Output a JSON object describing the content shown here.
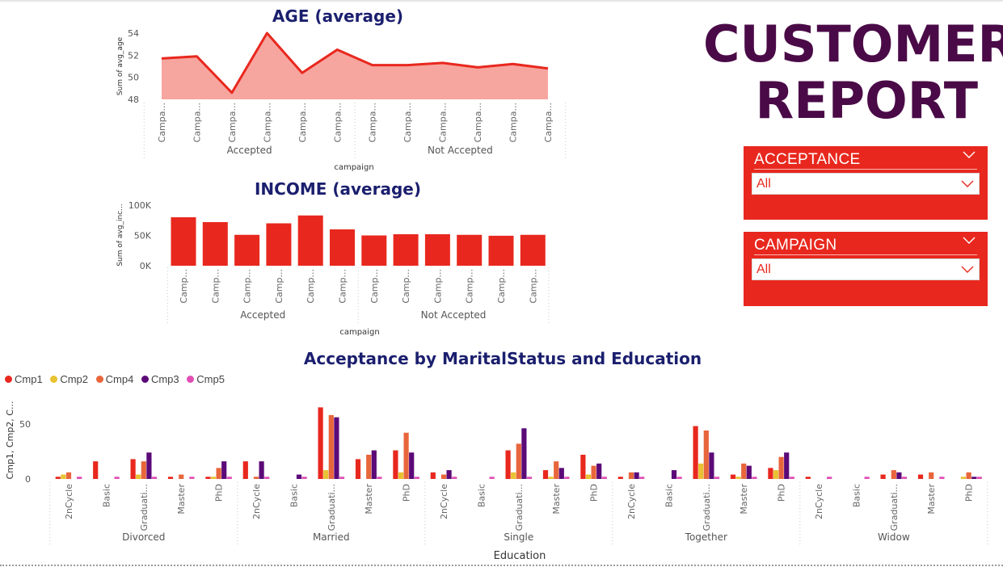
{
  "report_title": [
    "CUSTOMER",
    "REPORT"
  ],
  "slicers": [
    {
      "label": "ACCEPTANCE",
      "value": "All"
    },
    {
      "label": "CAMPAIGN",
      "value": "All"
    }
  ],
  "colors": {
    "accent_red": "#e8281e",
    "area_fill": "#f7a59f",
    "title_navy": "#1b1f6e",
    "report_purple": "#4a0a47"
  },
  "chart_data": [
    {
      "type": "area",
      "title": "AGE (average)",
      "ylabel": "Sum of avg_age",
      "xlabel": "campaign",
      "ylim": [
        48,
        54
      ],
      "yticks": [
        48,
        50,
        52,
        54
      ],
      "categories": [
        "Campa...",
        "Campa...",
        "Campa...",
        "Campa...",
        "Campa...",
        "Campa...",
        "Campa...",
        "Campa...",
        "Campa...",
        "Campa...",
        "Campa...",
        "Campa..."
      ],
      "groups": [
        {
          "label": "Accepted",
          "count": 6
        },
        {
          "label": "Not Accepted",
          "count": 6
        }
      ],
      "values": [
        51.7,
        51.9,
        48.6,
        54.0,
        50.4,
        52.5,
        51.1,
        51.1,
        51.3,
        50.9,
        51.2,
        50.8
      ]
    },
    {
      "type": "bar",
      "title": "INCOME (average)",
      "ylabel": "Sum of avg_inc...",
      "xlabel": "campaign",
      "ylim": [
        0,
        100000
      ],
      "yticks": [
        0,
        50000,
        100000
      ],
      "ytick_labels": [
        "0K",
        "50K",
        "100K"
      ],
      "categories": [
        "Camp...",
        "Camp...",
        "Camp...",
        "Camp...",
        "Camp...",
        "Camp...",
        "Camp...",
        "Camp...",
        "Camp...",
        "Camp...",
        "Camp...",
        "Camp..."
      ],
      "groups": [
        {
          "label": "Accepted",
          "count": 6
        },
        {
          "label": "Not Accepted",
          "count": 6
        }
      ],
      "values": [
        80000,
        72000,
        51000,
        70000,
        83000,
        60000,
        50000,
        52000,
        52000,
        51000,
        49500,
        51000
      ]
    },
    {
      "type": "bar",
      "title": "Acceptance by MaritalStatus and Education",
      "ylabel": "Cmp1, Cmp2, C...",
      "xlabel": "Education",
      "ylim": [
        0,
        66
      ],
      "yticks": [
        0,
        50
      ],
      "ytick_labels": [
        "0",
        "50"
      ],
      "series": [
        {
          "name": "Cmp1",
          "color": "#e8281e",
          "values": [
            2,
            16,
            18,
            2,
            2,
            16,
            0,
            65,
            18,
            26,
            6,
            0,
            26,
            8,
            22,
            2,
            0,
            48,
            4,
            10,
            2,
            0,
            4,
            4,
            0
          ]
        },
        {
          "name": "Cmp2",
          "color": "#e9c232",
          "values": [
            4,
            0,
            4,
            0,
            2,
            0,
            0,
            8,
            0,
            6,
            0,
            0,
            6,
            2,
            4,
            0,
            0,
            14,
            2,
            8,
            0,
            0,
            0,
            0,
            2
          ]
        },
        {
          "name": "Cmp4",
          "color": "#e8663c",
          "values": [
            6,
            0,
            16,
            4,
            10,
            2,
            0,
            58,
            22,
            42,
            4,
            0,
            32,
            16,
            12,
            6,
            0,
            44,
            14,
            20,
            0,
            0,
            8,
            6,
            6
          ]
        },
        {
          "name": "Cmp3",
          "color": "#5b0a78",
          "values": [
            0,
            0,
            24,
            0,
            16,
            16,
            4,
            56,
            26,
            24,
            8,
            0,
            46,
            10,
            14,
            6,
            8,
            24,
            12,
            24,
            0,
            0,
            6,
            0,
            2
          ]
        },
        {
          "name": "Cmp5",
          "color": "#e04fb4",
          "values": [
            2,
            2,
            2,
            2,
            2,
            2,
            2,
            2,
            2,
            2,
            2,
            2,
            2,
            2,
            2,
            2,
            2,
            2,
            2,
            2,
            2,
            2,
            2,
            2,
            2
          ]
        }
      ],
      "categories": [
        "2nCycle",
        "Basic",
        "Graduati...",
        "Master",
        "PhD",
        "2nCycle",
        "Basic",
        "Graduati...",
        "Master",
        "PhD",
        "2nCycle",
        "Basic",
        "Graduati...",
        "Master",
        "PhD",
        "2nCycle",
        "Basic",
        "Graduati...",
        "Master",
        "PhD",
        "2nCycle",
        "Basic",
        "Graduati...",
        "Master",
        "PhD"
      ],
      "groups": [
        {
          "label": "Divorced",
          "count": 5
        },
        {
          "label": "Married",
          "count": 5
        },
        {
          "label": "Single",
          "count": 5
        },
        {
          "label": "Together",
          "count": 5
        },
        {
          "label": "Widow",
          "count": 5
        }
      ]
    }
  ]
}
